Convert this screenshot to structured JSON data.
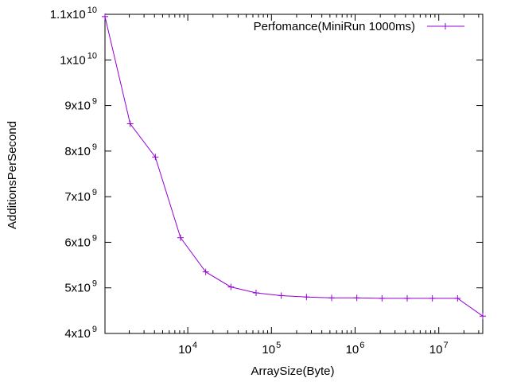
{
  "chart_data": {
    "type": "line",
    "xlabel": "ArraySize(Byte)",
    "ylabel": "AdditionsPerSecond",
    "x_scale": "log",
    "xlim": [
      1024,
      33554432
    ],
    "ylim": [
      4000000000,
      11000000000
    ],
    "grid": false,
    "legend_position": "top-right",
    "series": [
      {
        "name": "Perfomance(MiniRun 1000ms)",
        "color": "#9400d3",
        "marker": "plus",
        "x": [
          1024,
          2048,
          4096,
          8192,
          16384,
          32768,
          65536,
          131072,
          262144,
          524288,
          1048576,
          2097152,
          4194304,
          8388608,
          16777216,
          33554432
        ],
        "y": [
          10950000000,
          8600000000,
          7870000000,
          6100000000,
          5350000000,
          5020000000,
          4890000000,
          4830000000,
          4800000000,
          4780000000,
          4780000000,
          4770000000,
          4770000000,
          4770000000,
          4770000000,
          4380000000
        ]
      }
    ],
    "x_ticks": [
      {
        "value": 10000,
        "base": "10",
        "exp": "4"
      },
      {
        "value": 100000,
        "base": "10",
        "exp": "5"
      },
      {
        "value": 1000000,
        "base": "10",
        "exp": "6"
      },
      {
        "value": 10000000,
        "base": "10",
        "exp": "7"
      }
    ],
    "y_ticks": [
      {
        "value": 4000000000,
        "mant": "4x10",
        "exp": "9"
      },
      {
        "value": 5000000000,
        "mant": "5x10",
        "exp": "9"
      },
      {
        "value": 6000000000,
        "mant": "6x10",
        "exp": "9"
      },
      {
        "value": 7000000000,
        "mant": "7x10",
        "exp": "9"
      },
      {
        "value": 8000000000,
        "mant": "8x10",
        "exp": "9"
      },
      {
        "value": 9000000000,
        "mant": "9x10",
        "exp": "9"
      },
      {
        "value": 10000000000,
        "mant": "1x10",
        "exp": "10"
      },
      {
        "value": 11000000000,
        "mant": "1.1x10",
        "exp": "10"
      }
    ]
  }
}
